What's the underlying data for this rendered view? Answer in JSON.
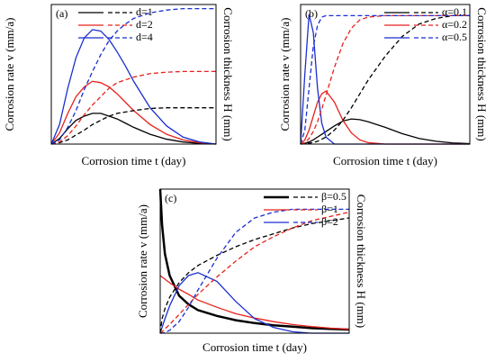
{
  "chart_data": [
    {
      "type": "line",
      "panel_label": "(a)",
      "xlabel": "Corrosion time t (day)",
      "ylabel": "Corrosion rate v (mm/a)",
      "y2label": "Corrosion thickness H (mm)",
      "xlim": [
        0,
        1
      ],
      "ylim": [
        0,
        1
      ],
      "y2lim": [
        0,
        1
      ],
      "legend": "upper left",
      "x": [
        0,
        0.05,
        0.1,
        0.15,
        0.2,
        0.25,
        0.3,
        0.35,
        0.4,
        0.45,
        0.5,
        0.6,
        0.7,
        0.8,
        0.9,
        1
      ],
      "series": [
        {
          "name": "d=1",
          "color": "#000000",
          "values": [
            0,
            0.04,
            0.11,
            0.17,
            0.2,
            0.22,
            0.22,
            0.2,
            0.18,
            0.15,
            0.12,
            0.07,
            0.035,
            0.015,
            0.005,
            0
          ]
        },
        {
          "name": "d=2",
          "color": "#e8201a",
          "values": [
            0,
            0.08,
            0.22,
            0.34,
            0.41,
            0.45,
            0.44,
            0.41,
            0.36,
            0.3,
            0.24,
            0.14,
            0.07,
            0.03,
            0.01,
            0
          ]
        },
        {
          "name": "d=4",
          "color": "#1a2fd0",
          "values": [
            0,
            0.14,
            0.4,
            0.62,
            0.76,
            0.82,
            0.81,
            0.75,
            0.66,
            0.56,
            0.45,
            0.26,
            0.13,
            0.05,
            0.015,
            0
          ]
        },
        {
          "axis": "y2",
          "color": "#000000",
          "dash": true,
          "values": [
            0,
            0.01,
            0.03,
            0.065,
            0.1,
            0.14,
            0.17,
            0.2,
            0.22,
            0.23,
            0.24,
            0.255,
            0.26,
            0.26,
            0.26,
            0.26
          ]
        },
        {
          "axis": "y2",
          "color": "#e8201a",
          "dash": true,
          "values": [
            0,
            0.015,
            0.06,
            0.13,
            0.21,
            0.28,
            0.34,
            0.4,
            0.44,
            0.46,
            0.48,
            0.505,
            0.515,
            0.52,
            0.52,
            0.52
          ]
        },
        {
          "axis": "y2",
          "color": "#1a2fd0",
          "dash": true,
          "values": [
            0,
            0.03,
            0.12,
            0.24,
            0.39,
            0.52,
            0.64,
            0.74,
            0.81,
            0.86,
            0.9,
            0.94,
            0.96,
            0.97,
            0.97,
            0.97
          ]
        }
      ]
    },
    {
      "type": "line",
      "panel_label": "(b)",
      "xlabel": "Corrosion time t (day)",
      "ylabel": "Corrosion rate v (mm/a)",
      "y2label": "Corrosion thickness H (mm)",
      "xlim": [
        0,
        1
      ],
      "ylim": [
        0,
        1
      ],
      "y2lim": [
        0,
        1
      ],
      "legend": "upper right",
      "x": [
        0,
        0.025,
        0.05,
        0.075,
        0.1,
        0.125,
        0.15,
        0.2,
        0.25,
        0.3,
        0.35,
        0.4,
        0.5,
        0.6,
        0.7,
        0.8,
        0.9,
        1
      ],
      "series": [
        {
          "name": "α=0.1",
          "color": "#000000",
          "values": [
            0,
            0.005,
            0.015,
            0.03,
            0.05,
            0.07,
            0.09,
            0.13,
            0.165,
            0.18,
            0.175,
            0.16,
            0.12,
            0.075,
            0.04,
            0.02,
            0.008,
            0.003
          ]
        },
        {
          "name": "α=0.2",
          "color": "#e8201a",
          "values": [
            0,
            0.03,
            0.1,
            0.2,
            0.3,
            0.36,
            0.38,
            0.3,
            0.17,
            0.08,
            0.03,
            0.01,
            0,
            0,
            0,
            0,
            0,
            0
          ]
        },
        {
          "name": "α=0.5",
          "color": "#1a2fd0",
          "values": [
            0,
            0.5,
            0.93,
            0.8,
            0.4,
            0.15,
            0.05,
            0,
            0,
            0,
            0,
            0,
            0,
            0,
            0,
            0,
            0,
            0
          ]
        },
        {
          "axis": "y2",
          "color": "#000000",
          "dash": true,
          "values": [
            0,
            0.002,
            0.006,
            0.012,
            0.02,
            0.035,
            0.05,
            0.1,
            0.17,
            0.26,
            0.36,
            0.46,
            0.63,
            0.77,
            0.86,
            0.9,
            0.92,
            0.92
          ]
        },
        {
          "axis": "y2",
          "color": "#e8201a",
          "dash": true,
          "values": [
            0,
            0.01,
            0.04,
            0.09,
            0.16,
            0.25,
            0.35,
            0.55,
            0.72,
            0.83,
            0.89,
            0.91,
            0.92,
            0.92,
            0.92,
            0.92,
            0.92,
            0.92
          ]
        },
        {
          "axis": "y2",
          "color": "#1a2fd0",
          "dash": true,
          "values": [
            0,
            0.1,
            0.4,
            0.7,
            0.85,
            0.91,
            0.92,
            0.92,
            0.92,
            0.92,
            0.92,
            0.92,
            0.92,
            0.92,
            0.92,
            0.92,
            0.92,
            0.92
          ]
        }
      ]
    },
    {
      "type": "line",
      "panel_label": "(c)",
      "xlabel": "Corrosion time t (day)",
      "ylabel": "Corrosion rate v (mm/a)",
      "y2label": "Corrosion thickness H (mm)",
      "xlim": [
        0,
        1
      ],
      "ylim": [
        0,
        1
      ],
      "y2lim": [
        0,
        1
      ],
      "legend": "upper right",
      "x": [
        0,
        0.01,
        0.025,
        0.05,
        0.1,
        0.15,
        0.2,
        0.3,
        0.4,
        0.5,
        0.6,
        0.7,
        0.8,
        0.9,
        1
      ],
      "series": [
        {
          "name": "β=0.5",
          "color": "#000000",
          "line_width": 2.5,
          "values": [
            1.0,
            0.75,
            0.55,
            0.4,
            0.26,
            0.2,
            0.16,
            0.12,
            0.09,
            0.07,
            0.055,
            0.045,
            0.035,
            0.03,
            0.025
          ]
        },
        {
          "name": "β=1",
          "color": "#e8201a",
          "values": [
            0.4,
            0.39,
            0.375,
            0.35,
            0.305,
            0.27,
            0.23,
            0.18,
            0.135,
            0.105,
            0.08,
            0.06,
            0.046,
            0.035,
            0.027
          ]
        },
        {
          "name": "β=2",
          "color": "#1a2fd0",
          "values": [
            0,
            0.04,
            0.1,
            0.19,
            0.33,
            0.4,
            0.42,
            0.36,
            0.22,
            0.1,
            0.04,
            0.01,
            0,
            0,
            0
          ]
        },
        {
          "axis": "y2",
          "color": "#000000",
          "dash": true,
          "values": [
            0,
            0.1,
            0.17,
            0.25,
            0.35,
            0.42,
            0.47,
            0.54,
            0.6,
            0.65,
            0.69,
            0.73,
            0.76,
            0.78,
            0.8
          ]
        },
        {
          "axis": "y2",
          "color": "#e8201a",
          "dash": true,
          "values": [
            0,
            0.01,
            0.03,
            0.06,
            0.13,
            0.2,
            0.27,
            0.39,
            0.5,
            0.6,
            0.67,
            0.73,
            0.78,
            0.81,
            0.84
          ]
        },
        {
          "axis": "y2",
          "color": "#1a2fd0",
          "dash": true,
          "values": [
            0,
            0,
            0.005,
            0.02,
            0.08,
            0.18,
            0.3,
            0.52,
            0.7,
            0.8,
            0.84,
            0.86,
            0.86,
            0.86,
            0.86
          ]
        }
      ]
    }
  ]
}
